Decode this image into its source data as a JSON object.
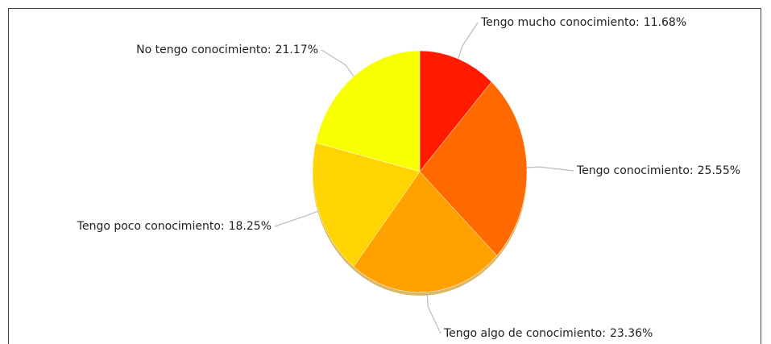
{
  "chart_data": {
    "type": "pie",
    "categories": [
      "Tengo mucho conocimiento:",
      "Tengo conocimiento:",
      "Tengo algo de conocimiento:",
      "Tengo poco conocimiento:",
      "No tengo conocimiento:"
    ],
    "values": [
      11.68,
      25.55,
      23.36,
      18.25,
      21.17
    ],
    "value_labels": [
      "11.68%",
      "25.55%",
      "23.36%",
      "18.25%",
      "21.17%"
    ],
    "colors": [
      "#ff1a00",
      "#ff6a00",
      "#ffa200",
      "#ffd400",
      "#f8ff00"
    ]
  }
}
